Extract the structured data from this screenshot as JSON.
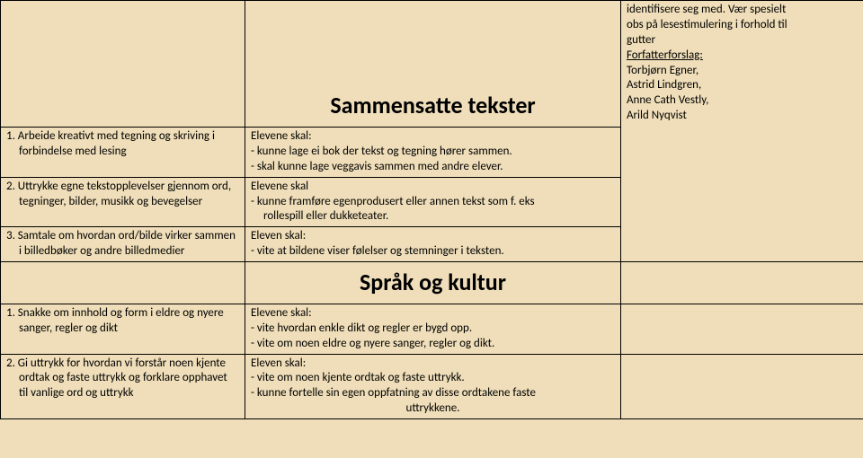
{
  "section1": {
    "heading": "Sammensatte tekster",
    "right_cell": {
      "line1": "identifisere seg med. Vær spesielt",
      "line2": "obs på lesestimulering i forhold til",
      "line3": "gutter",
      "label": "Forfatterforslag:",
      "author1": "Torbjørn Egner,",
      "author2": "Astrid Lindgren,",
      "author3": "Anne Cath Vestly,",
      "author4": "Arild Nyqvist"
    },
    "rows": [
      {
        "left_l1": "1. Arbeide kreativt med tegning og skriving i",
        "left_l2": "forbindelse med lesing",
        "mid_l1": "Elevene skal:",
        "mid_l2": "- kunne lage ei bok der tekst og tegning hører sammen.",
        "mid_l3": "- skal kunne lage veggavis sammen med andre elever."
      },
      {
        "left_l1": "2. Uttrykke egne tekstopplevelser gjennom ord,",
        "left_l2": "tegninger, bilder, musikk og bevegelser",
        "mid_l1": "Elevene skal",
        "mid_l2": "- kunne framføre egenprodusert eller annen tekst som f. eks",
        "mid_l3": "rollespill eller dukketeater."
      },
      {
        "left_l1": "3. Samtale om hvordan ord/bilde virker sammen",
        "left_l2": "i billedbøker og andre billedmedier",
        "mid_l1": "Eleven skal:",
        "mid_l2": "- vite at bildene viser følelser og stemninger i teksten."
      }
    ]
  },
  "section2": {
    "heading": "Språk og kultur",
    "rows": [
      {
        "left_l1": "1. Snakke om innhold og form i eldre og nyere",
        "left_l2": "sanger, regler og dikt",
        "mid_l1": "Elevene skal:",
        "mid_l2": "- vite hvordan enkle dikt og regler er bygd opp.",
        "mid_l3": "- vite om noen eldre og nyere sanger, regler og dikt."
      },
      {
        "left_l1": "2. Gi uttrykk for hvordan vi forstår noen kjente",
        "left_l2": "ordtak og faste uttrykk og forklare opphavet",
        "left_l3": "til vanlige ord og uttrykk",
        "mid_l1": "Eleven skal:",
        "mid_l2": "- vite om noen kjente ordtak og faste uttrykk.",
        "mid_l3": "- kunne fortelle sin egen oppfatning av disse ordtakene faste",
        "mid_l4": "uttrykkene."
      }
    ]
  }
}
